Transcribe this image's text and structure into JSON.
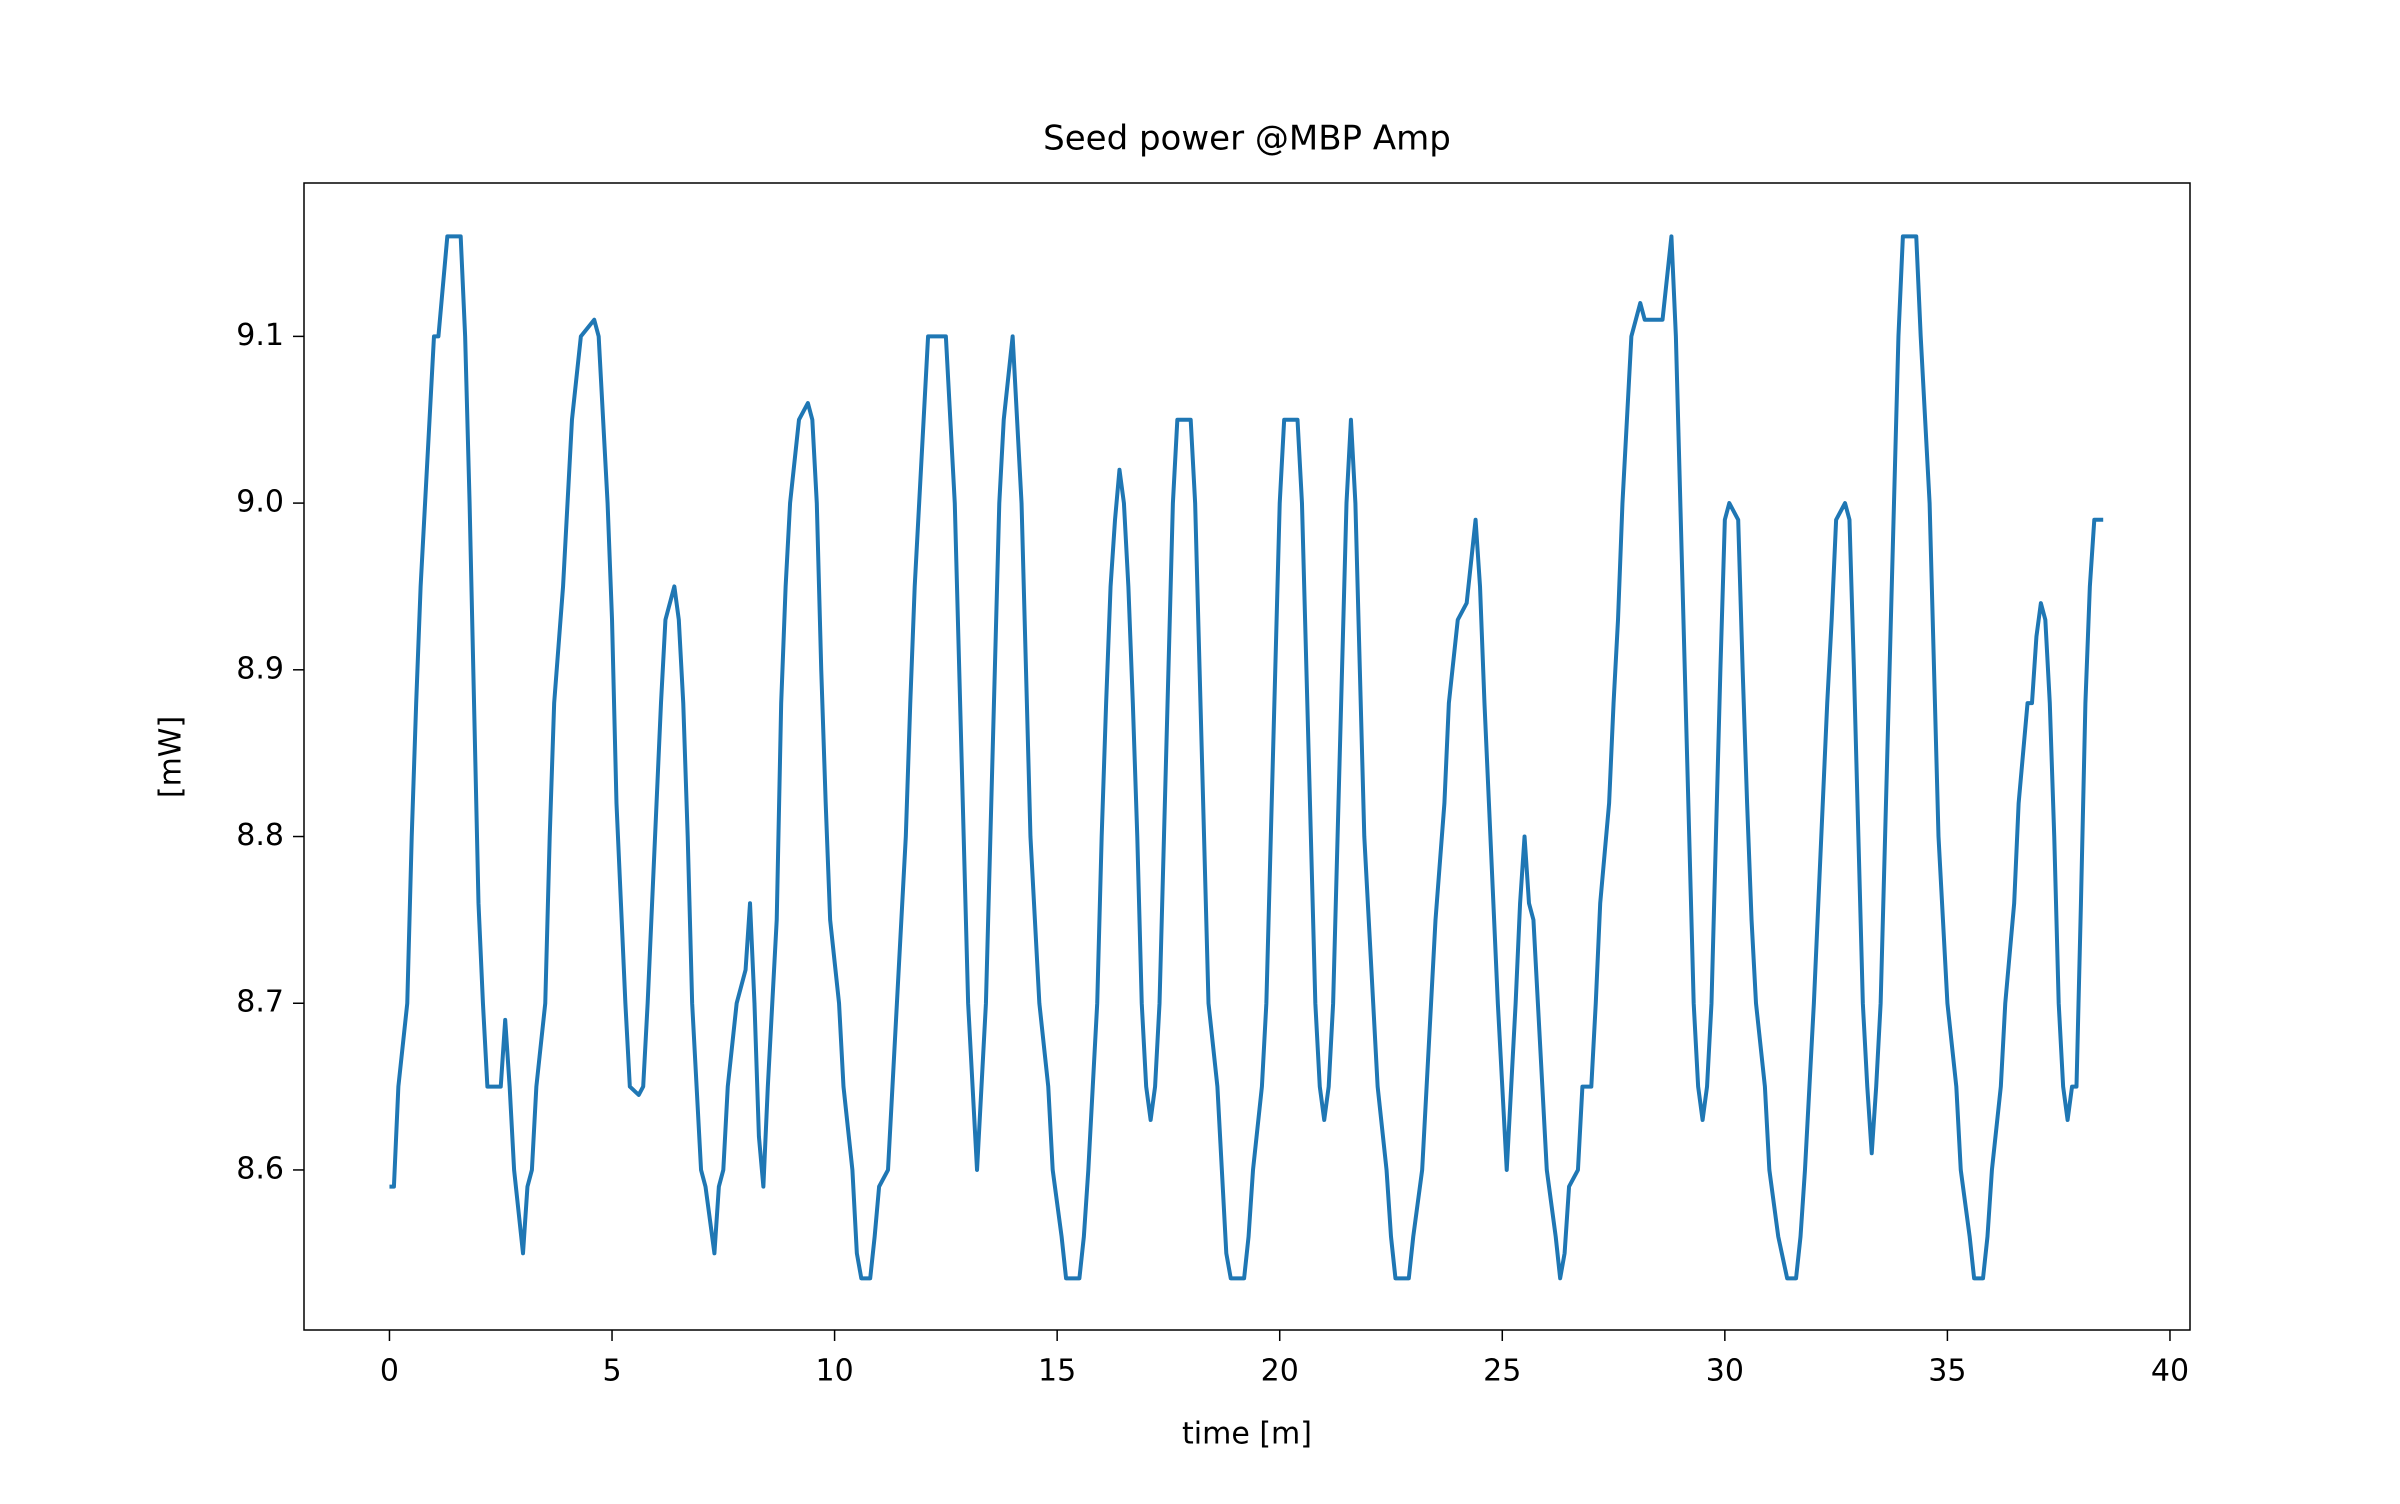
{
  "chart_data": {
    "type": "line",
    "title": "Seed power @MBP Amp",
    "xlabel": "time [m]",
    "ylabel": "[mW]",
    "xlim": [
      -1.92,
      40.45
    ],
    "ylim": [
      8.504,
      9.192
    ],
    "xticks": [
      0,
      5,
      10,
      15,
      20,
      25,
      30,
      35,
      40
    ],
    "yticks": [
      8.6,
      8.7,
      8.8,
      8.9,
      {
        "value": 9,
        "label": "9.0"
      },
      9.1
    ],
    "grid": false,
    "x": [
      0,
      0.1,
      0.2,
      0.4,
      0.5,
      0.6,
      0.7,
      0.8,
      0.9,
      1.0,
      1.1,
      1.2,
      1.3,
      1.5,
      1.6,
      1.7,
      1.8,
      1.9,
      2.0,
      2.1,
      2.2,
      2.5,
      2.6,
      2.7,
      2.8,
      3.0,
      3.1,
      3.2,
      3.3,
      3.5,
      3.6,
      3.7,
      3.9,
      4.0,
      4.1,
      4.3,
      4.6,
      4.7,
      4.8,
      4.9,
      5.0,
      5.1,
      5.2,
      5.3,
      5.4,
      5.6,
      5.7,
      5.8,
      6.0,
      6.1,
      6.2,
      6.4,
      6.5,
      6.6,
      6.7,
      6.8,
      6.9,
      7.0,
      7.1,
      7.3,
      7.4,
      7.5,
      7.6,
      7.8,
      8.0,
      8.1,
      8.2,
      8.3,
      8.4,
      8.5,
      8.7,
      8.8,
      8.9,
      9.0,
      9.2,
      9.4,
      9.5,
      9.6,
      9.7,
      9.8,
      9.9,
      10.1,
      10.2,
      10.4,
      10.5,
      10.6,
      10.8,
      10.9,
      11.0,
      11.2,
      11.3,
      11.4,
      11.6,
      11.7,
      11.8,
      11.9,
      12.0,
      12.1,
      12.3,
      12.5,
      12.6,
      12.7,
      12.8,
      12.9,
      13.0,
      13.1,
      13.2,
      13.3,
      13.4,
      13.5,
      13.6,
      13.7,
      13.8,
      14.0,
      14.1,
      14.2,
      14.3,
      14.4,
      14.5,
      14.6,
      14.8,
      14.9,
      15.1,
      15.2,
      15.5,
      15.6,
      15.7,
      15.8,
      15.9,
      16.0,
      16.1,
      16.2,
      16.3,
      16.4,
      16.5,
      16.6,
      16.7,
      16.8,
      16.9,
      17.0,
      17.1,
      17.2,
      17.3,
      17.4,
      17.5,
      17.6,
      17.7,
      18.0,
      18.1,
      18.2,
      18.3,
      18.4,
      18.6,
      18.7,
      18.8,
      18.9,
      19.2,
      19.3,
      19.4,
      19.6,
      19.7,
      19.8,
      19.9,
      20.0,
      20.1,
      20.3,
      20.4,
      20.5,
      20.6,
      20.7,
      20.8,
      20.9,
      21.0,
      21.1,
      21.2,
      21.3,
      21.4,
      21.5,
      21.6,
      21.7,
      21.8,
      21.9,
      22.0,
      22.1,
      22.2,
      22.4,
      22.5,
      22.6,
      22.9,
      23.0,
      23.2,
      23.3,
      23.4,
      23.5,
      23.7,
      23.8,
      24.0,
      24.2,
      24.4,
      24.5,
      24.6,
      24.7,
      24.9,
      25.0,
      25.1,
      25.2,
      25.3,
      25.4,
      25.5,
      25.6,
      25.7,
      25.8,
      25.9,
      26.0,
      26.2,
      26.3,
      26.4,
      26.5,
      26.7,
      26.8,
      27.0,
      27.1,
      27.2,
      27.4,
      27.5,
      27.6,
      27.7,
      27.8,
      27.9,
      28.0,
      28.1,
      28.2,
      28.4,
      28.6,
      28.8,
      28.9,
      29.0,
      29.1,
      29.2,
      29.3,
      29.4,
      29.5,
      29.6,
      29.7,
      29.8,
      29.9,
      30.0,
      30.1,
      30.3,
      30.4,
      30.5,
      30.6,
      30.7,
      30.9,
      31.0,
      31.2,
      31.4,
      31.6,
      31.7,
      31.8,
      31.9,
      32.0,
      32.1,
      32.2,
      32.3,
      32.4,
      32.5,
      32.7,
      32.8,
      32.9,
      33.0,
      33.1,
      33.2,
      33.3,
      33.4,
      33.5,
      33.6,
      33.7,
      33.8,
      33.9,
      34.0,
      34.3,
      34.4,
      34.5,
      34.6,
      34.7,
      34.8,
      34.9,
      35.0,
      35.2,
      35.3,
      35.5,
      35.6,
      35.8,
      35.9,
      36.0,
      36.2,
      36.3,
      36.5,
      36.6,
      36.8,
      36.9,
      37.0,
      37.1,
      37.2,
      37.3,
      37.4,
      37.5,
      37.6,
      37.7,
      37.8,
      37.9,
      38.0,
      38.1,
      38.2,
      38.3,
      38.5
    ],
    "series": [
      {
        "color": "#1f77b4",
        "values": [
          8.59,
          8.59,
          8.65,
          8.7,
          8.8,
          8.88,
          8.95,
          9.0,
          9.05,
          9.1,
          9.1,
          9.13,
          9.16,
          9.16,
          9.16,
          9.1,
          9.0,
          8.88,
          8.76,
          8.7,
          8.65,
          8.65,
          8.69,
          8.65,
          8.6,
          8.55,
          8.59,
          8.6,
          8.65,
          8.7,
          8.8,
          8.88,
          8.95,
          9.0,
          9.05,
          9.1,
          9.11,
          9.1,
          9.05,
          9.0,
          8.93,
          8.82,
          8.76,
          8.7,
          8.65,
          8.645,
          8.65,
          8.7,
          8.82,
          8.88,
          8.93,
          8.95,
          8.93,
          8.88,
          8.8,
          8.7,
          8.65,
          8.6,
          8.59,
          8.55,
          8.59,
          8.6,
          8.65,
          8.7,
          8.72,
          8.76,
          8.7,
          8.62,
          8.59,
          8.65,
          8.75,
          8.88,
          8.95,
          9.0,
          9.05,
          9.06,
          9.05,
          9.0,
          8.9,
          8.82,
          8.75,
          8.7,
          8.65,
          8.6,
          8.55,
          8.535,
          8.535,
          8.56,
          8.59,
          8.6,
          8.65,
          8.7,
          8.8,
          8.88,
          8.95,
          9.0,
          9.05,
          9.1,
          9.1,
          9.1,
          9.05,
          9.0,
          8.9,
          8.8,
          8.7,
          8.65,
          8.6,
          8.65,
          8.7,
          8.8,
          8.9,
          9.0,
          9.05,
          9.1,
          9.05,
          9.0,
          8.9,
          8.8,
          8.75,
          8.7,
          8.65,
          8.6,
          8.56,
          8.535,
          8.535,
          8.56,
          8.6,
          8.65,
          8.7,
          8.8,
          8.88,
          8.95,
          8.99,
          9.02,
          9.0,
          8.95,
          8.88,
          8.8,
          8.7,
          8.65,
          8.63,
          8.65,
          8.7,
          8.8,
          8.9,
          9.0,
          9.05,
          9.05,
          9.0,
          8.9,
          8.8,
          8.7,
          8.65,
          8.6,
          8.55,
          8.535,
          8.535,
          8.56,
          8.6,
          8.65,
          8.7,
          8.8,
          8.9,
          9.0,
          9.05,
          9.05,
          9.05,
          9.0,
          8.9,
          8.8,
          8.7,
          8.65,
          8.63,
          8.65,
          8.7,
          8.8,
          8.9,
          9.0,
          9.05,
          9.0,
          8.9,
          8.8,
          8.75,
          8.7,
          8.65,
          8.6,
          8.56,
          8.535,
          8.535,
          8.56,
          8.6,
          8.65,
          8.7,
          8.75,
          8.82,
          8.88,
          8.93,
          8.94,
          8.99,
          8.95,
          8.88,
          8.82,
          8.7,
          8.65,
          8.6,
          8.65,
          8.7,
          8.76,
          8.8,
          8.76,
          8.75,
          8.7,
          8.65,
          8.6,
          8.56,
          8.535,
          8.55,
          8.59,
          8.6,
          8.65,
          8.65,
          8.7,
          8.76,
          8.82,
          8.88,
          8.93,
          9.0,
          9.05,
          9.1,
          9.11,
          9.12,
          9.11,
          9.11,
          9.11,
          9.16,
          9.1,
          9.0,
          8.9,
          8.8,
          8.7,
          8.65,
          8.63,
          8.65,
          8.7,
          8.8,
          8.9,
          8.99,
          9.0,
          8.99,
          8.9,
          8.82,
          8.75,
          8.7,
          8.65,
          8.6,
          8.56,
          8.535,
          8.535,
          8.56,
          8.6,
          8.65,
          8.7,
          8.76,
          8.82,
          8.88,
          8.93,
          8.99,
          9.0,
          8.99,
          8.9,
          8.8,
          8.7,
          8.65,
          8.61,
          8.65,
          8.7,
          8.8,
          8.9,
          9.0,
          9.1,
          9.16,
          9.16,
          9.1,
          9.05,
          9.0,
          8.9,
          8.8,
          8.75,
          8.7,
          8.65,
          8.6,
          8.56,
          8.535,
          8.535,
          8.56,
          8.6,
          8.65,
          8.7,
          8.76,
          8.82,
          8.88,
          8.88,
          8.92,
          8.94,
          8.93,
          8.88,
          8.8,
          8.7,
          8.65,
          8.63,
          8.65,
          8.65,
          8.76,
          8.88,
          8.95,
          8.99,
          8.99
        ]
      }
    ]
  }
}
